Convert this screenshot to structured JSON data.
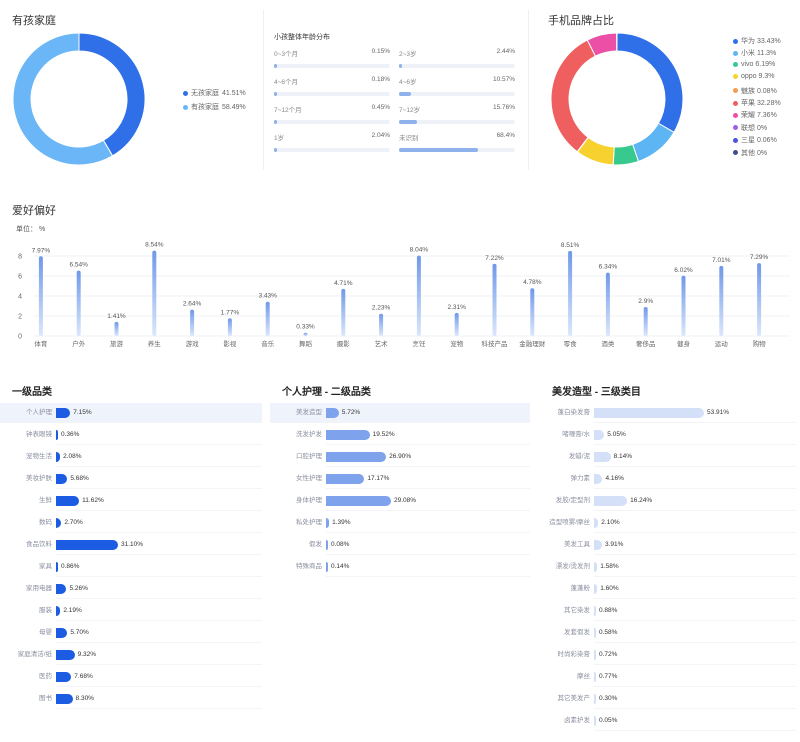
{
  "family": {
    "title": "有孩家庭",
    "legend": [
      {
        "label": "无孩家庭",
        "value": "41.51%",
        "color": "#2f6fe8"
      },
      {
        "label": "有孩家庭",
        "value": "58.49%",
        "color": "#6ab6f7"
      }
    ]
  },
  "age": {
    "title": "小孩整体年龄分布",
    "items": [
      {
        "label": "0~3个月",
        "value": "0.15%"
      },
      {
        "label": "2~3岁",
        "value": "2.44%"
      },
      {
        "label": "4~6个月",
        "value": "0.18%"
      },
      {
        "label": "4~6岁",
        "value": "10.57%"
      },
      {
        "label": "7~12个月",
        "value": "0.45%"
      },
      {
        "label": "7~12岁",
        "value": "15.76%"
      },
      {
        "label": "1岁",
        "value": "2.04%"
      },
      {
        "label": "未识别",
        "value": "68.4%"
      }
    ]
  },
  "phone": {
    "title": "手机品牌占比",
    "legend": [
      {
        "label": "华为 33.43%",
        "color": "#2f6fe8"
      },
      {
        "label": "小米 11.3%",
        "color": "#5db5f4"
      },
      {
        "label": "vivo 6.19%",
        "color": "#37c98d"
      },
      {
        "label": "oppo 9.3%",
        "color": "#f7d12e"
      },
      {
        "label": "魅族 0.08%",
        "color": "#f59a52"
      },
      {
        "label": "苹果 32.28%",
        "color": "#ef5f5f"
      },
      {
        "label": "荣耀 7.36%",
        "color": "#ec4fa6"
      },
      {
        "label": "联想 0%",
        "color": "#a05ee8"
      },
      {
        "label": "三星 0.06%",
        "color": "#4a55d9"
      },
      {
        "label": "其他 0%",
        "color": "#3f4b8c"
      }
    ]
  },
  "hobby": {
    "title": "爱好偏好",
    "unit": "单位： %"
  },
  "level1": {
    "title": "一级品类",
    "items": [
      {
        "label": "个人护理",
        "value": "7.15%"
      },
      {
        "label": "钟表眼镜",
        "value": "0.36%"
      },
      {
        "label": "宠物生活",
        "value": "2.08%"
      },
      {
        "label": "美妆护肤",
        "value": "5.68%"
      },
      {
        "label": "生鲜",
        "value": "11.62%"
      },
      {
        "label": "数码",
        "value": "2.70%"
      },
      {
        "label": "食品饮料",
        "value": "31.10%"
      },
      {
        "label": "家具",
        "value": "0.86%"
      },
      {
        "label": "家用电器",
        "value": "5.26%"
      },
      {
        "label": "服装",
        "value": "2.19%"
      },
      {
        "label": "母婴",
        "value": "5.70%"
      },
      {
        "label": "家庭清洁/纸",
        "value": "9.32%"
      },
      {
        "label": "医药",
        "value": "7.68%"
      },
      {
        "label": "图书",
        "value": "8.30%"
      }
    ]
  },
  "level2": {
    "title": "个人护理 - 二级品类",
    "items": [
      {
        "label": "美发造型",
        "value": "5.72%"
      },
      {
        "label": "洗发护发",
        "value": "19.52%"
      },
      {
        "label": "口腔护理",
        "value": "26.90%"
      },
      {
        "label": "女性护理",
        "value": "17.17%"
      },
      {
        "label": "身体护理",
        "value": "29.08%"
      },
      {
        "label": "私处护理",
        "value": "1.39%"
      },
      {
        "label": "假发",
        "value": "0.08%"
      },
      {
        "label": "特殊商品",
        "value": "0.14%"
      }
    ]
  },
  "level3": {
    "title": "美发造型 - 三级类目",
    "items": [
      {
        "label": "蓬白染发膏",
        "value": "53.91%"
      },
      {
        "label": "啫喱膏/水",
        "value": "5.05%"
      },
      {
        "label": "发蜡/泥",
        "value": "8.14%"
      },
      {
        "label": "弹力素",
        "value": "4.16%"
      },
      {
        "label": "发胶/定型剂",
        "value": "16.24%"
      },
      {
        "label": "造型喷雾/摩丝",
        "value": "2.10%"
      },
      {
        "label": "美发工具",
        "value": "3.91%"
      },
      {
        "label": "漂发/烫发剂",
        "value": "1.58%"
      },
      {
        "label": "蓬蓬粉",
        "value": "1.60%"
      },
      {
        "label": "其它染发",
        "value": "0.88%"
      },
      {
        "label": "发套假发",
        "value": "0.58%"
      },
      {
        "label": "时尚彩染膏",
        "value": "0.72%"
      },
      {
        "label": "摩丝",
        "value": "0.77%"
      },
      {
        "label": "其它美发产",
        "value": "0.30%"
      },
      {
        "label": "卤素护发",
        "value": "0.05%"
      }
    ]
  },
  "chart_data": [
    {
      "type": "pie",
      "title": "有孩家庭",
      "categories": [
        "无孩家庭",
        "有孩家庭"
      ],
      "values": [
        41.51,
        58.49
      ],
      "colors": [
        "#2f6fe8",
        "#6ab6f7"
      ]
    },
    {
      "type": "bar",
      "title": "小孩整体年龄分布",
      "categories": [
        "0~3个月",
        "2~3岁",
        "4~6个月",
        "4~6岁",
        "7~12个月",
        "7~12岁",
        "1岁",
        "未识别"
      ],
      "values": [
        0.15,
        2.44,
        0.18,
        10.57,
        0.45,
        15.76,
        2.04,
        68.4
      ]
    },
    {
      "type": "pie",
      "title": "手机品牌占比",
      "categories": [
        "华为",
        "小米",
        "vivo",
        "oppo",
        "魅族",
        "苹果",
        "荣耀",
        "联想",
        "三星",
        "其他"
      ],
      "values": [
        33.43,
        11.3,
        6.19,
        9.3,
        0.08,
        32.28,
        7.36,
        0,
        0.06,
        0
      ],
      "colors": [
        "#2f6fe8",
        "#5db5f4",
        "#37c98d",
        "#f7d12e",
        "#f59a52",
        "#ef5f5f",
        "#ec4fa6",
        "#a05ee8",
        "#4a55d9",
        "#3f4b8c"
      ]
    },
    {
      "type": "bar",
      "title": "爱好偏好",
      "ylabel": "单位： %",
      "categories": [
        "体育",
        "户外",
        "旅游",
        "养生",
        "游戏",
        "影视",
        "音乐",
        "舞蹈",
        "摄影",
        "艺术",
        "烹饪",
        "宠物",
        "科技产品",
        "金融理财",
        "零食",
        "酒类",
        "奢侈品",
        "健身",
        "运动",
        "购物"
      ],
      "values": [
        7.97,
        6.54,
        1.41,
        8.54,
        2.64,
        1.77,
        3.43,
        0.33,
        4.71,
        2.23,
        8.04,
        2.31,
        7.22,
        4.78,
        8.51,
        6.34,
        2.9,
        6.02,
        7.01,
        7.29
      ],
      "yticks": [
        0,
        2,
        4,
        6,
        8
      ],
      "ylim": [
        0,
        9
      ]
    },
    {
      "type": "bar",
      "title": "一级品类",
      "categories": [
        "个人护理",
        "钟表眼镜",
        "宠物生活",
        "美妆护肤",
        "生鲜",
        "数码",
        "食品饮料",
        "家具",
        "家用电器",
        "服装",
        "母婴",
        "家庭清洁/纸",
        "医药",
        "图书"
      ],
      "values": [
        7.15,
        0.36,
        2.08,
        5.68,
        11.62,
        2.7,
        31.1,
        0.86,
        5.26,
        2.19,
        5.7,
        9.32,
        7.68,
        8.3
      ]
    },
    {
      "type": "bar",
      "title": "个人护理 - 二级品类",
      "categories": [
        "美发造型",
        "洗发护发",
        "口腔护理",
        "女性护理",
        "身体护理",
        "私处护理",
        "假发",
        "特殊商品"
      ],
      "values": [
        5.72,
        19.52,
        26.9,
        17.17,
        29.08,
        1.39,
        0.08,
        0.14
      ]
    },
    {
      "type": "bar",
      "title": "美发造型 - 三级类目",
      "categories": [
        "蓬白染发膏",
        "啫喱膏/水",
        "发蜡/泥",
        "弹力素",
        "发胶/定型剂",
        "造型喷雾/摩丝",
        "美发工具",
        "漂发/烫发剂",
        "蓬蓬粉",
        "其它染发",
        "发套假发",
        "时尚彩染膏",
        "摩丝",
        "其它美发产",
        "卤素护发"
      ],
      "values": [
        53.91,
        5.05,
        8.14,
        4.16,
        16.24,
        2.1,
        3.91,
        1.58,
        1.6,
        0.88,
        0.58,
        0.72,
        0.77,
        0.3,
        0.05
      ]
    }
  ]
}
